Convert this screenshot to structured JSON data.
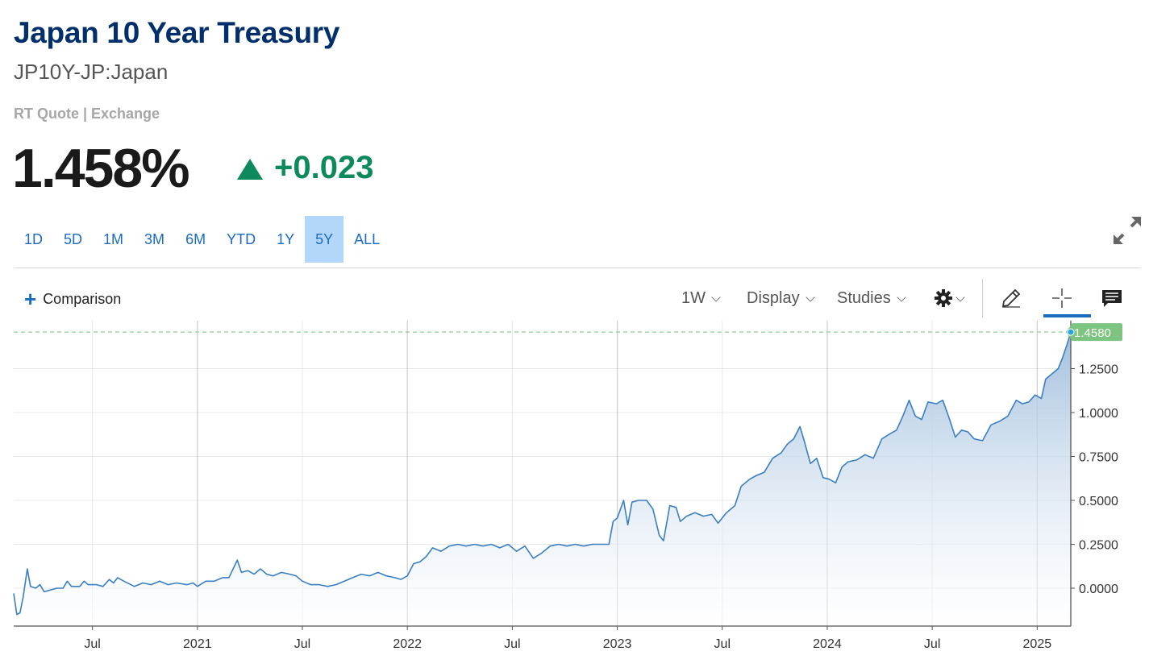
{
  "header": {
    "title": "Japan 10 Year Treasury",
    "subtitle": "JP10Y-JP:Japan",
    "rt_quote": "RT Quote | Exchange"
  },
  "quote": {
    "price": "1.458%",
    "change": "+0.023",
    "change_color": "#0c8a5b"
  },
  "ranges": {
    "items": [
      "1D",
      "5D",
      "1M",
      "3M",
      "6M",
      "YTD",
      "1Y",
      "5Y",
      "ALL"
    ],
    "active": "5Y"
  },
  "toolbar": {
    "comparison_label": "Comparison",
    "interval_label": "1W",
    "display_label": "Display",
    "studies_label": "Studies",
    "icons": [
      "gear-icon",
      "pencil-icon",
      "crosshair-icon",
      "news-icon",
      "expand-icon"
    ]
  },
  "colors": {
    "accent": "#1c6bc3",
    "title": "#002f6c",
    "line": "#3a7fc1",
    "last_price_tag": "#7cc47f"
  },
  "chart_data": {
    "type": "area",
    "y_axis_side": "right",
    "ylim": [
      -0.2,
      1.55
    ],
    "yticks": [
      0,
      0.25,
      0.5,
      0.75,
      1.0,
      1.25
    ],
    "ytick_labels": [
      "0.0000",
      "0.2500",
      "0.5000",
      "0.7500",
      "1.0000",
      "1.2500"
    ],
    "xtick_labels": [
      {
        "t": 2020.5,
        "label": "Jul"
      },
      {
        "t": 2021.0,
        "label": "2021"
      },
      {
        "t": 2021.5,
        "label": "Jul"
      },
      {
        "t": 2022.0,
        "label": "2022"
      },
      {
        "t": 2022.5,
        "label": "Jul"
      },
      {
        "t": 2023.0,
        "label": "2023"
      },
      {
        "t": 2023.5,
        "label": "Jul"
      },
      {
        "t": 2024.0,
        "label": "2024"
      },
      {
        "t": 2024.5,
        "label": "Jul"
      },
      {
        "t": 2025.0,
        "label": "2025"
      }
    ],
    "last_price": 1.458,
    "last_price_label": "1.4580",
    "grid": true,
    "series": [
      {
        "points": [
          [
            2020.125,
            -0.03
          ],
          [
            2020.14,
            -0.15
          ],
          [
            2020.155,
            -0.14
          ],
          [
            2020.17,
            -0.05
          ],
          [
            2020.19,
            0.11
          ],
          [
            2020.205,
            0.01
          ],
          [
            2020.23,
            0.0
          ],
          [
            2020.25,
            0.02
          ],
          [
            2020.27,
            -0.02
          ],
          [
            2020.3,
            -0.01
          ],
          [
            2020.33,
            0.0
          ],
          [
            2020.36,
            0.0
          ],
          [
            2020.38,
            0.04
          ],
          [
            2020.4,
            0.01
          ],
          [
            2020.44,
            0.01
          ],
          [
            2020.46,
            0.04
          ],
          [
            2020.48,
            0.02
          ],
          [
            2020.52,
            0.02
          ],
          [
            2020.55,
            0.01
          ],
          [
            2020.58,
            0.05
          ],
          [
            2020.6,
            0.03
          ],
          [
            2020.62,
            0.06
          ],
          [
            2020.65,
            0.04
          ],
          [
            2020.7,
            0.01
          ],
          [
            2020.74,
            0.03
          ],
          [
            2020.78,
            0.02
          ],
          [
            2020.82,
            0.04
          ],
          [
            2020.86,
            0.02
          ],
          [
            2020.9,
            0.03
          ],
          [
            2020.95,
            0.02
          ],
          [
            2020.98,
            0.03
          ],
          [
            2021.0,
            0.01
          ],
          [
            2021.04,
            0.04
          ],
          [
            2021.08,
            0.04
          ],
          [
            2021.12,
            0.06
          ],
          [
            2021.15,
            0.06
          ],
          [
            2021.17,
            0.11
          ],
          [
            2021.19,
            0.16
          ],
          [
            2021.21,
            0.09
          ],
          [
            2021.24,
            0.1
          ],
          [
            2021.27,
            0.08
          ],
          [
            2021.3,
            0.11
          ],
          [
            2021.33,
            0.08
          ],
          [
            2021.36,
            0.07
          ],
          [
            2021.4,
            0.09
          ],
          [
            2021.44,
            0.08
          ],
          [
            2021.47,
            0.07
          ],
          [
            2021.5,
            0.04
          ],
          [
            2021.54,
            0.02
          ],
          [
            2021.58,
            0.02
          ],
          [
            2021.62,
            0.01
          ],
          [
            2021.66,
            0.02
          ],
          [
            2021.7,
            0.04
          ],
          [
            2021.74,
            0.06
          ],
          [
            2021.78,
            0.08
          ],
          [
            2021.82,
            0.07
          ],
          [
            2021.86,
            0.09
          ],
          [
            2021.9,
            0.07
          ],
          [
            2021.94,
            0.06
          ],
          [
            2021.97,
            0.05
          ],
          [
            2022.0,
            0.07
          ],
          [
            2022.03,
            0.14
          ],
          [
            2022.06,
            0.15
          ],
          [
            2022.09,
            0.18
          ],
          [
            2022.12,
            0.23
          ],
          [
            2022.16,
            0.21
          ],
          [
            2022.2,
            0.24
          ],
          [
            2022.24,
            0.25
          ],
          [
            2022.28,
            0.24
          ],
          [
            2022.32,
            0.25
          ],
          [
            2022.36,
            0.24
          ],
          [
            2022.4,
            0.25
          ],
          [
            2022.44,
            0.23
          ],
          [
            2022.48,
            0.25
          ],
          [
            2022.52,
            0.21
          ],
          [
            2022.56,
            0.24
          ],
          [
            2022.6,
            0.17
          ],
          [
            2022.64,
            0.2
          ],
          [
            2022.68,
            0.24
          ],
          [
            2022.72,
            0.25
          ],
          [
            2022.76,
            0.24
          ],
          [
            2022.8,
            0.25
          ],
          [
            2022.84,
            0.24
          ],
          [
            2022.88,
            0.25
          ],
          [
            2022.92,
            0.25
          ],
          [
            2022.96,
            0.25
          ],
          [
            2022.98,
            0.38
          ],
          [
            2023.0,
            0.4
          ],
          [
            2023.03,
            0.5
          ],
          [
            2023.05,
            0.36
          ],
          [
            2023.07,
            0.49
          ],
          [
            2023.1,
            0.5
          ],
          [
            2023.14,
            0.5
          ],
          [
            2023.17,
            0.45
          ],
          [
            2023.2,
            0.3
          ],
          [
            2023.22,
            0.27
          ],
          [
            2023.25,
            0.47
          ],
          [
            2023.28,
            0.46
          ],
          [
            2023.3,
            0.38
          ],
          [
            2023.33,
            0.41
          ],
          [
            2023.37,
            0.43
          ],
          [
            2023.41,
            0.41
          ],
          [
            2023.45,
            0.42
          ],
          [
            2023.48,
            0.37
          ],
          [
            2023.52,
            0.43
          ],
          [
            2023.56,
            0.47
          ],
          [
            2023.59,
            0.58
          ],
          [
            2023.63,
            0.62
          ],
          [
            2023.66,
            0.64
          ],
          [
            2023.7,
            0.66
          ],
          [
            2023.74,
            0.74
          ],
          [
            2023.78,
            0.77
          ],
          [
            2023.81,
            0.82
          ],
          [
            2023.84,
            0.85
          ],
          [
            2023.87,
            0.92
          ],
          [
            2023.89,
            0.84
          ],
          [
            2023.92,
            0.71
          ],
          [
            2023.95,
            0.74
          ],
          [
            2023.98,
            0.63
          ],
          [
            2024.01,
            0.62
          ],
          [
            2024.04,
            0.6
          ],
          [
            2024.07,
            0.69
          ],
          [
            2024.1,
            0.72
          ],
          [
            2024.14,
            0.73
          ],
          [
            2024.18,
            0.76
          ],
          [
            2024.22,
            0.74
          ],
          [
            2024.26,
            0.85
          ],
          [
            2024.3,
            0.88
          ],
          [
            2024.33,
            0.9
          ],
          [
            2024.36,
            0.98
          ],
          [
            2024.39,
            1.07
          ],
          [
            2024.42,
            0.98
          ],
          [
            2024.45,
            0.96
          ],
          [
            2024.48,
            1.06
          ],
          [
            2024.52,
            1.05
          ],
          [
            2024.55,
            1.07
          ],
          [
            2024.58,
            0.97
          ],
          [
            2024.61,
            0.86
          ],
          [
            2024.64,
            0.9
          ],
          [
            2024.67,
            0.89
          ],
          [
            2024.7,
            0.85
          ],
          [
            2024.74,
            0.84
          ],
          [
            2024.78,
            0.93
          ],
          [
            2024.82,
            0.95
          ],
          [
            2024.86,
            0.98
          ],
          [
            2024.9,
            1.07
          ],
          [
            2024.93,
            1.05
          ],
          [
            2024.96,
            1.06
          ],
          [
            2024.99,
            1.1
          ],
          [
            2025.02,
            1.08
          ],
          [
            2025.04,
            1.19
          ],
          [
            2025.07,
            1.22
          ],
          [
            2025.1,
            1.25
          ],
          [
            2025.12,
            1.31
          ],
          [
            2025.14,
            1.38
          ],
          [
            2025.16,
            1.458
          ]
        ]
      }
    ]
  }
}
